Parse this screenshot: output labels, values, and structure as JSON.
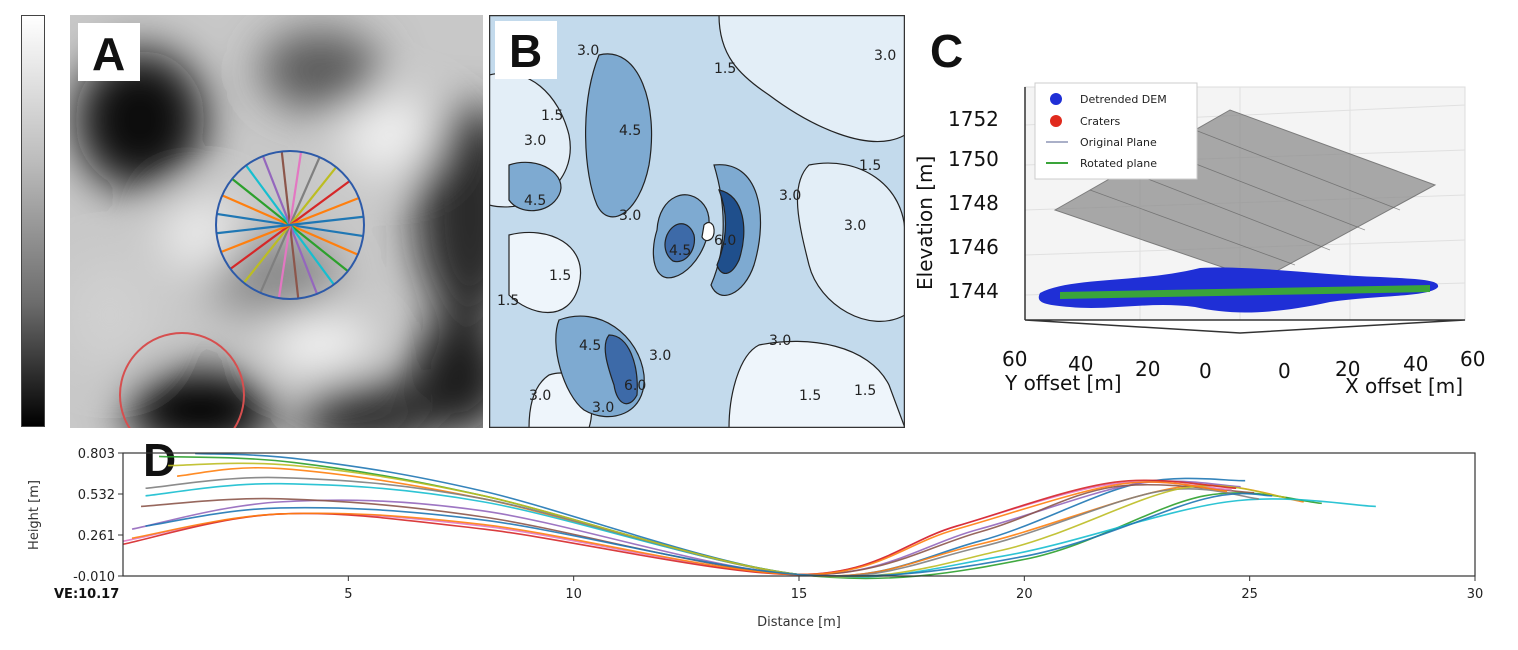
{
  "panels": {
    "a": {
      "letter": "A"
    },
    "b": {
      "letter": "B",
      "contour_labels": [
        "1.5",
        "3.0",
        "4.5",
        "6.0"
      ]
    },
    "c": {
      "letter": "C"
    },
    "d": {
      "letter": "D"
    }
  },
  "panel_c": {
    "ylabel": "Elevation [m]",
    "zticks": [
      "1752",
      "1750",
      "1748",
      "1746",
      "1744"
    ],
    "y_offset_ticks": [
      "60",
      "40",
      "20",
      "0"
    ],
    "x_offset_ticks": [
      "0",
      "20",
      "40",
      "60"
    ],
    "y_offset_label": "Y offset [m]",
    "x_offset_label": "X offset [m]",
    "legend": [
      {
        "label": "Detrended DEM",
        "color": "#1f2fd6"
      },
      {
        "label": "Craters",
        "color": "#e02a1d"
      },
      {
        "label": "Original Plane",
        "color": "#aab0c8"
      },
      {
        "label": "Rotated plane",
        "color": "#3aa43a"
      }
    ]
  },
  "chart_data": {
    "type": "line",
    "title": "",
    "xlabel": "Distance [m]",
    "ylabel": "Height [m]",
    "xlim": [
      0,
      30
    ],
    "ylim": [
      -0.01,
      0.803
    ],
    "xticks": [
      "5",
      "10",
      "15",
      "20",
      "25",
      "30"
    ],
    "xtick_values": [
      5,
      10,
      15,
      20,
      25,
      30
    ],
    "yticks": [
      "0.803",
      "0.532",
      "0.261",
      "-0.010"
    ],
    "ytick_values": [
      0.803,
      0.532,
      0.261,
      -0.01
    ],
    "annotation": "VE:10.17",
    "series": [
      {
        "color": "#1f77b4",
        "x": [
          1.6,
          4,
          8,
          15,
          19,
          22.5,
          24.9
        ],
        "y": [
          0.8,
          0.76,
          0.55,
          0.0,
          0.22,
          0.6,
          0.62
        ]
      },
      {
        "color": "#ff7f0e",
        "x": [
          1.2,
          3.5,
          8,
          15,
          19,
          23.5,
          26.2
        ],
        "y": [
          0.65,
          0.7,
          0.5,
          0.0,
          0.2,
          0.58,
          0.48
        ]
      },
      {
        "color": "#2ca02c",
        "x": [
          0.8,
          3.8,
          8,
          15,
          20,
          24,
          26.6
        ],
        "y": [
          0.78,
          0.74,
          0.52,
          0.0,
          0.1,
          0.52,
          0.47
        ]
      },
      {
        "color": "#17becf",
        "x": [
          0.5,
          3.5,
          8,
          15,
          19.5,
          24.5,
          27.8
        ],
        "y": [
          0.52,
          0.6,
          0.48,
          0.0,
          0.12,
          0.48,
          0.45
        ]
      },
      {
        "color": "#9467bd",
        "x": [
          0.2,
          3.5,
          8,
          15,
          19,
          22.5,
          24.8
        ],
        "y": [
          0.3,
          0.48,
          0.42,
          0.0,
          0.3,
          0.6,
          0.58
        ]
      },
      {
        "color": "#8c564b",
        "x": [
          0.4,
          3.5,
          8,
          15,
          19,
          22,
          25.1
        ],
        "y": [
          0.45,
          0.5,
          0.38,
          0.0,
          0.28,
          0.58,
          0.54
        ]
      },
      {
        "color": "#e377c2",
        "x": [
          0.0,
          3.5,
          8,
          15,
          18.5,
          22,
          24.6
        ],
        "y": [
          0.22,
          0.4,
          0.32,
          0.0,
          0.32,
          0.6,
          0.56
        ]
      },
      {
        "color": "#7f7f7f",
        "x": [
          0.5,
          3.5,
          8,
          15,
          19,
          23,
          25.2
        ],
        "y": [
          0.57,
          0.64,
          0.5,
          0.0,
          0.18,
          0.55,
          0.5
        ]
      },
      {
        "color": "#bcbd22",
        "x": [
          1.0,
          3.8,
          8,
          15,
          19.5,
          23.5,
          25.8
        ],
        "y": [
          0.72,
          0.72,
          0.52,
          0.0,
          0.16,
          0.57,
          0.51
        ]
      },
      {
        "color": "#d62728",
        "x": [
          0.0,
          3.5,
          8,
          15,
          18.5,
          22,
          24.7
        ],
        "y": [
          0.2,
          0.4,
          0.3,
          0.0,
          0.32,
          0.61,
          0.57
        ]
      },
      {
        "color": "#ff7f0e",
        "x": [
          0.2,
          3.5,
          8,
          15,
          18.5,
          22.2,
          24.5
        ],
        "y": [
          0.24,
          0.4,
          0.33,
          0.0,
          0.3,
          0.6,
          0.55
        ]
      },
      {
        "color": "#1f77b4",
        "x": [
          0.5,
          3.5,
          8,
          15,
          20,
          24,
          25.5
        ],
        "y": [
          0.32,
          0.44,
          0.36,
          0.0,
          0.12,
          0.5,
          0.52
        ]
      }
    ]
  }
}
